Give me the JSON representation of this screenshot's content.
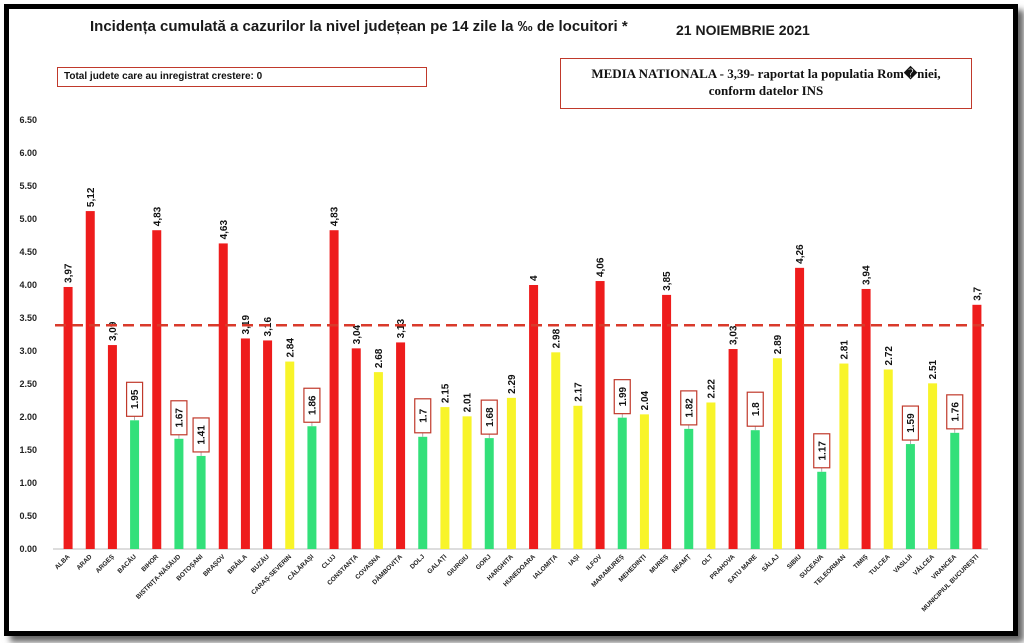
{
  "title": "Incidența cumulată a cazurilor la nivel județean pe 14 zile la ‰ de locuitori *",
  "date": "21 NOIEMBRIE 2021",
  "note_box": "Total judete care au inregistrat crestere: 0",
  "average_box": {
    "line1": "MEDIA NATIONALA - 3,39-  raportat la populatia Rom�niei,",
    "line2": "conform datelor INS"
  },
  "colors": {
    "red": "#ee1c1c",
    "green": "#33e07a",
    "yellow": "#f8f429",
    "average_line": "#d93a2b"
  },
  "chart_data": {
    "type": "bar",
    "ylim": [
      0,
      6.5
    ],
    "yticks": [
      "0.00",
      "0.50",
      "1.00",
      "1.50",
      "2.00",
      "2.50",
      "3.00",
      "3.50",
      "4.00",
      "4.50",
      "5.00",
      "5.50",
      "6.00",
      "6.50"
    ],
    "average": 3.39,
    "grid": false,
    "categories": [
      "ALBA",
      "ARAD",
      "ARGEȘ",
      "BACĂU",
      "BIHOR",
      "BISTRIȚA-NĂSĂUD",
      "BOTOȘANI",
      "BRAȘOV",
      "BRĂILA",
      "BUZĂU",
      "CARAȘ-SEVERIN",
      "CĂLĂRAȘI",
      "CLUJ",
      "CONSTANȚA",
      "COVASNA",
      "DÂMBOVIȚA",
      "DOLJ",
      "GALAȚI",
      "GIURGIU",
      "GORJ",
      "HARGHITA",
      "HUNEDOARA",
      "IALOMIȚA",
      "IAȘI",
      "ILFOV",
      "MARAMUREȘ",
      "MEHEDINȚI",
      "MUREȘ",
      "NEAMȚ",
      "OLT",
      "PRAHOVA",
      "SATU MARE",
      "SĂLAJ",
      "SIBIU",
      "SUCEAVA",
      "TELEORMAN",
      "TIMIȘ",
      "TULCEA",
      "VASLUI",
      "VÂLCEA",
      "VRANCEA",
      "MUNICIPIUL BUCUREȘTI"
    ],
    "values": [
      3.97,
      5.12,
      3.09,
      1.95,
      4.83,
      1.67,
      1.41,
      4.63,
      3.19,
      3.16,
      2.84,
      1.86,
      4.83,
      3.04,
      2.68,
      3.13,
      1.7,
      2.15,
      2.01,
      1.68,
      2.29,
      4,
      2.98,
      2.17,
      4.06,
      1.99,
      2.04,
      3.85,
      1.82,
      2.22,
      3.03,
      1.8,
      2.89,
      4.26,
      1.17,
      2.81,
      3.94,
      2.72,
      1.59,
      2.51,
      1.76,
      3.7
    ],
    "labels": [
      "3,97",
      "5,12",
      "3,09",
      "1.95",
      "4,83",
      "1.67",
      "1.41",
      "4,63",
      "3,19",
      "3,16",
      "2.84",
      "1.86",
      "4,83",
      "3,04",
      "2.68",
      "3,13",
      "1.7",
      "2.15",
      "2.01",
      "1.68",
      "2.29",
      "4",
      "2.98",
      "2.17",
      "4,06",
      "1.99",
      "2.04",
      "3,85",
      "1.82",
      "2.22",
      "3,03",
      "1.8",
      "2.89",
      "4,26",
      "1.17",
      "2.81",
      "3,94",
      "2.72",
      "1.59",
      "2.51",
      "1.76",
      "3,7"
    ],
    "colors": [
      "red",
      "red",
      "red",
      "green",
      "red",
      "green",
      "green",
      "red",
      "red",
      "red",
      "yellow",
      "green",
      "red",
      "red",
      "yellow",
      "red",
      "green",
      "yellow",
      "yellow",
      "green",
      "yellow",
      "red",
      "yellow",
      "yellow",
      "red",
      "green",
      "yellow",
      "red",
      "green",
      "yellow",
      "red",
      "green",
      "yellow",
      "red",
      "green",
      "yellow",
      "red",
      "yellow",
      "green",
      "yellow",
      "green",
      "red"
    ],
    "boxed": [
      false,
      false,
      false,
      true,
      false,
      true,
      true,
      false,
      false,
      false,
      false,
      true,
      false,
      false,
      false,
      false,
      true,
      false,
      false,
      true,
      false,
      false,
      false,
      false,
      false,
      true,
      false,
      false,
      true,
      false,
      false,
      true,
      false,
      false,
      true,
      false,
      false,
      false,
      true,
      false,
      true,
      false
    ]
  }
}
